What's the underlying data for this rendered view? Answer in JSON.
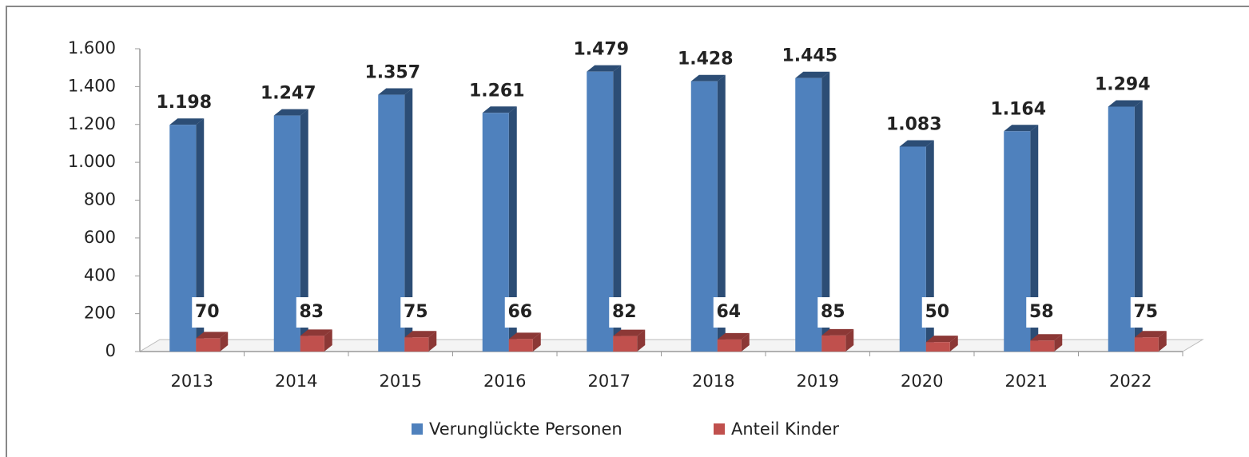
{
  "chart_data": {
    "type": "bar3d",
    "categories": [
      "2013",
      "2014",
      "2015",
      "2016",
      "2017",
      "2018",
      "2019",
      "2020",
      "2021",
      "2022"
    ],
    "series": [
      {
        "name": "Verunglückte Personen",
        "color": "#4f81bd",
        "side": "#2c4d75",
        "values": [
          1198,
          1247,
          1357,
          1261,
          1479,
          1428,
          1445,
          1083,
          1164,
          1294
        ],
        "value_labels": [
          "1.198",
          "1.247",
          "1.357",
          "1.261",
          "1.479",
          "1.428",
          "1.445",
          "1.083",
          "1.164",
          "1.294"
        ]
      },
      {
        "name": "Anteil Kinder",
        "color": "#c0504d",
        "side": "#8c3836",
        "values": [
          70,
          83,
          75,
          66,
          82,
          64,
          85,
          50,
          58,
          75
        ]
      }
    ],
    "ylim": [
      0,
      1600
    ],
    "yticks": [
      0,
      200,
      400,
      600,
      800,
      {
        "value": 1000,
        "label": "1.000"
      },
      {
        "value": 1200,
        "label": "1.200"
      },
      {
        "value": 1400,
        "label": "1.400"
      },
      {
        "value": 1600,
        "label": "1.600"
      }
    ],
    "legend": "bottom"
  }
}
